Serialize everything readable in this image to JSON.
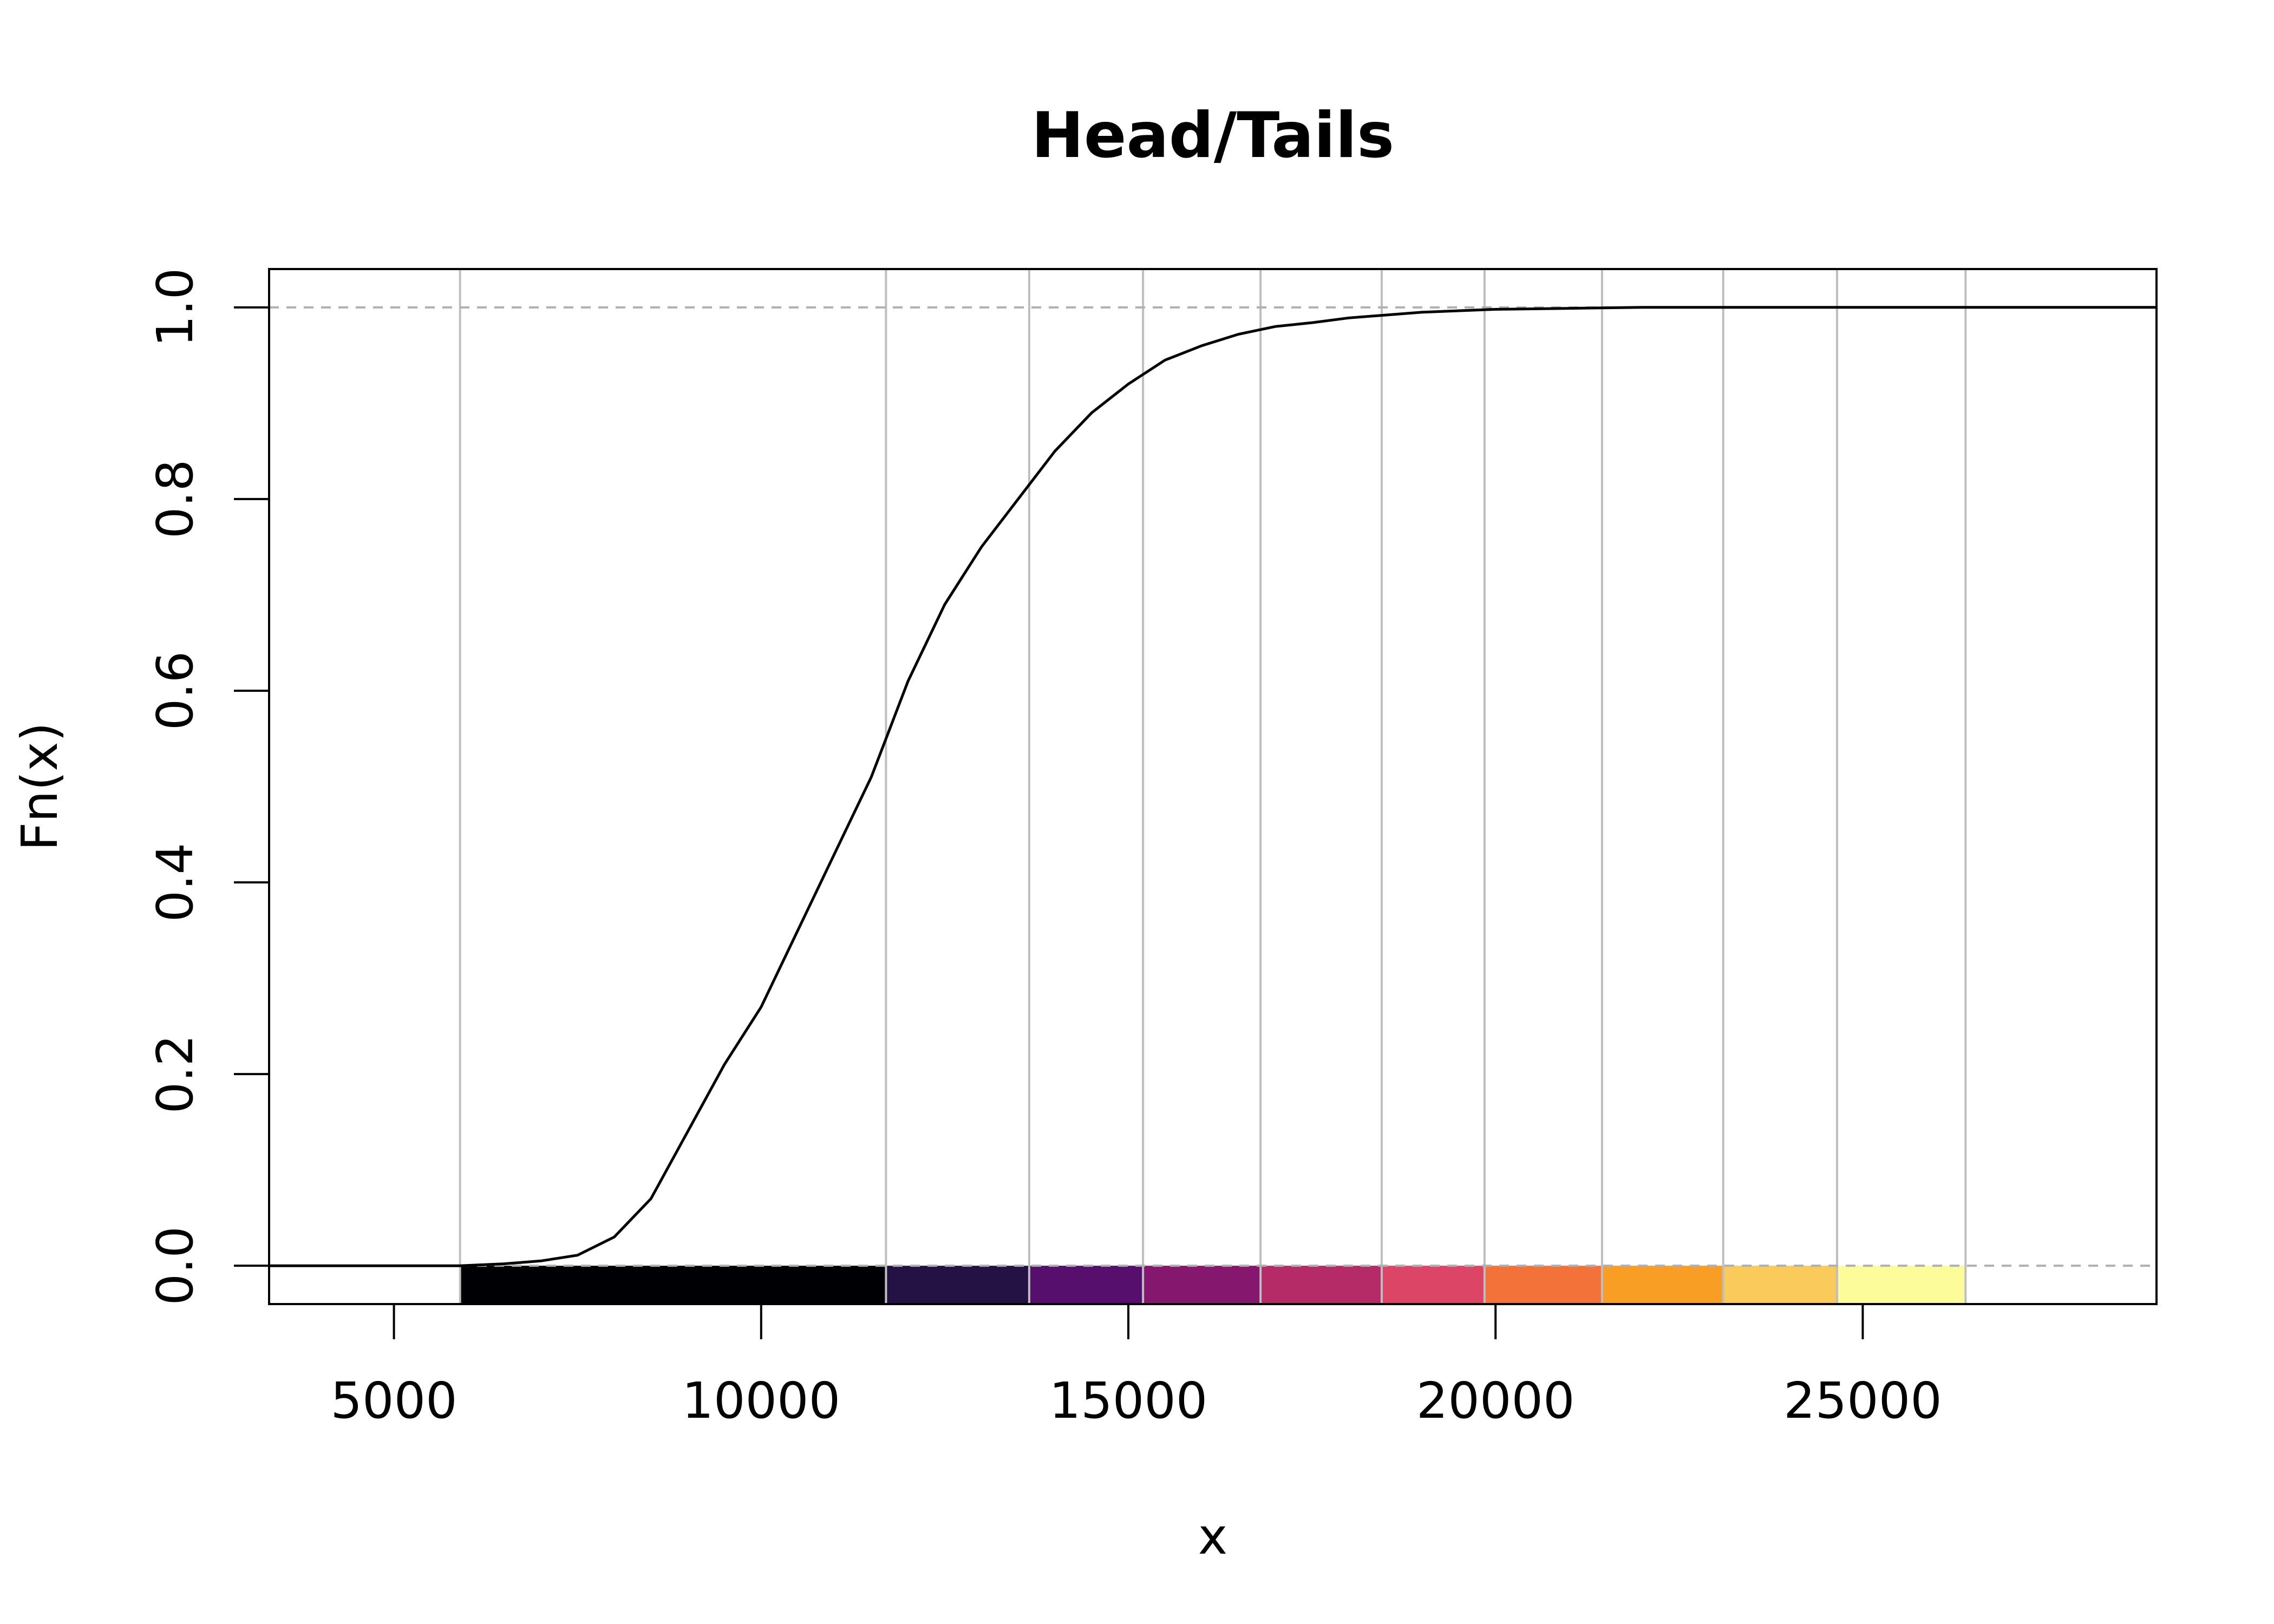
{
  "chart_data": {
    "type": "line",
    "title": "Head/Tails",
    "xlabel": "x",
    "ylabel": "Fn(x)",
    "xlim": [
      3300,
      29000
    ],
    "ylim": [
      -0.04,
      1.04
    ],
    "x_ticks": [
      5000,
      10000,
      15000,
      20000,
      25000
    ],
    "y_ticks": [
      0.0,
      0.2,
      0.4,
      0.6,
      0.8,
      1.0
    ],
    "x_tick_labels": [
      "5000",
      "10000",
      "15000",
      "20000",
      "25000"
    ],
    "y_tick_labels": [
      "0.0",
      "0.2",
      "0.4",
      "0.6",
      "0.8",
      "1.0"
    ],
    "reference_lines_y": [
      0,
      1
    ],
    "break_lines_x": [
      5900,
      11700,
      13650,
      15200,
      16800,
      18450,
      19850,
      21450,
      23100,
      24650,
      26400
    ],
    "class_colors": [
      "#000004",
      "#251245",
      "#560F6D",
      "#86176E",
      "#B52B68",
      "#DC4565",
      "#F3723A",
      "#F99E24",
      "#FACB5A",
      "#FCFD9A"
    ],
    "ecdf": {
      "x": [
        3300,
        5900,
        6500,
        7000,
        7500,
        8000,
        8500,
        9000,
        9500,
        10000,
        10500,
        11000,
        11500,
        12000,
        12500,
        13000,
        13500,
        14000,
        14500,
        15000,
        15500,
        16000,
        16500,
        17000,
        17500,
        18000,
        19000,
        20000,
        21000,
        22000,
        29000
      ],
      "y": [
        0.0,
        0.0,
        0.002,
        0.005,
        0.011,
        0.03,
        0.07,
        0.14,
        0.21,
        0.27,
        0.35,
        0.43,
        0.51,
        0.61,
        0.69,
        0.75,
        0.8,
        0.85,
        0.89,
        0.92,
        0.945,
        0.96,
        0.972,
        0.98,
        0.984,
        0.989,
        0.995,
        0.998,
        0.999,
        1.0,
        1.0
      ]
    }
  }
}
